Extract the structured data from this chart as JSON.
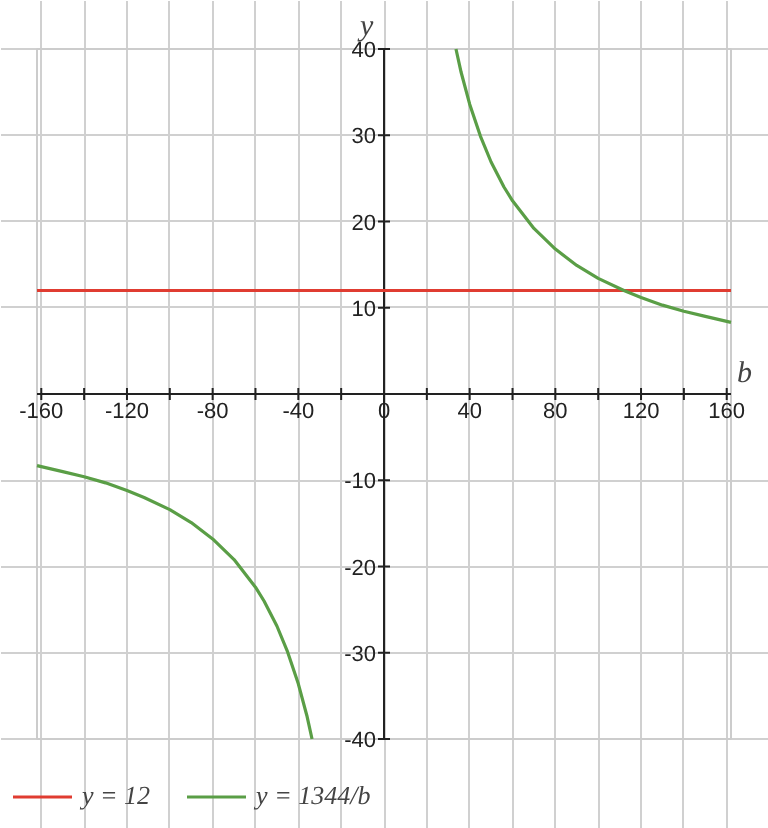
{
  "chart_data": {
    "type": "line",
    "xlabel": "b",
    "ylabel": "y",
    "xlim": [
      -162,
      162
    ],
    "ylim": [
      -40,
      40
    ],
    "xticks": [
      -160,
      {
        "value": -140,
        "label": null
      },
      -120,
      {
        "value": -100,
        "label": null
      },
      -80,
      {
        "value": -60,
        "label": null
      },
      -40,
      {
        "value": -20,
        "label": null
      },
      0,
      {
        "value": 20,
        "label": null
      },
      40,
      {
        "value": 60,
        "label": null
      },
      80,
      {
        "value": 100,
        "label": null
      },
      120,
      {
        "value": 140,
        "label": null
      },
      160
    ],
    "yticks": [
      -40,
      -30,
      -20,
      -10,
      10,
      20,
      30,
      40
    ],
    "grid": true,
    "legend": "bottom left",
    "series": [
      {
        "name": "y = 12",
        "color": "#e03c31",
        "x": [
          -162,
          162
        ],
        "values": [
          12,
          12
        ]
      },
      {
        "name": "y = 1344/b",
        "color": "#5a9e46",
        "x": [
          -162,
          -150,
          -140,
          -130,
          -120,
          -112,
          -100,
          -90,
          -80,
          -70,
          -60,
          -56,
          -50,
          -45,
          -40,
          -36,
          -33.6,
          0,
          33.6,
          36,
          40,
          45,
          50,
          56,
          60,
          70,
          80,
          90,
          100,
          112,
          120,
          130,
          140,
          150,
          162
        ],
        "values": [
          -8.3,
          -9,
          -9.6,
          -10.3,
          -11.2,
          -12,
          -13.4,
          -14.9,
          -16.8,
          -19.2,
          -22.4,
          -24,
          -26.9,
          -29.9,
          -33.6,
          -37.3,
          -40,
          null,
          40,
          37.3,
          33.6,
          29.9,
          26.9,
          24,
          22.4,
          19.2,
          16.8,
          14.9,
          13.4,
          12,
          11.2,
          10.3,
          9.6,
          9,
          8.3
        ]
      }
    ]
  }
}
